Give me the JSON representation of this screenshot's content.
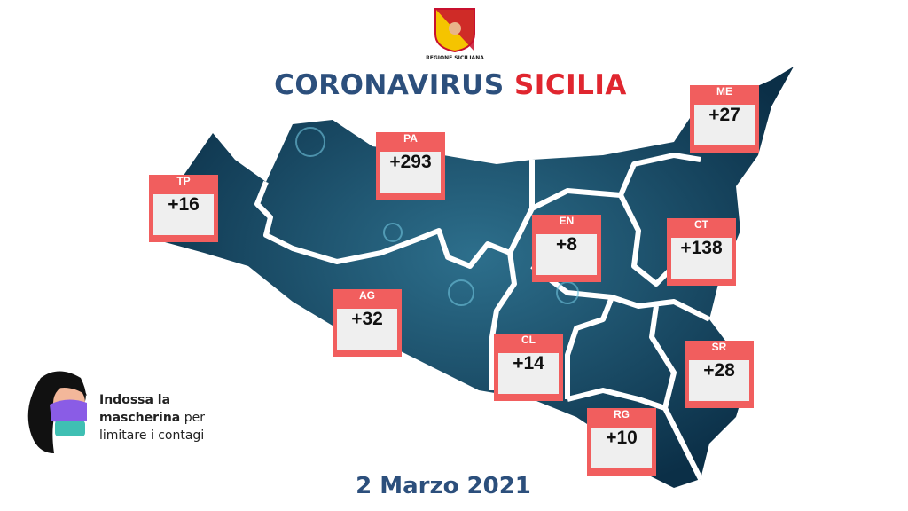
{
  "header": {
    "logo_text": "REGIONE SICILIANA",
    "title_part1": "CORONAVIRUS",
    "title_part2": "SICILIA"
  },
  "colors": {
    "title_blue": "#2c4f7c",
    "title_red": "#e0262f",
    "card_red": "#f15e5e",
    "map": "#0e3a55"
  },
  "provinces": [
    {
      "code": "TP",
      "value": "+16"
    },
    {
      "code": "PA",
      "value": "+293"
    },
    {
      "code": "ME",
      "value": "+27"
    },
    {
      "code": "EN",
      "value": "+8"
    },
    {
      "code": "CT",
      "value": "+138"
    },
    {
      "code": "AG",
      "value": "+32"
    },
    {
      "code": "CL",
      "value": "+14"
    },
    {
      "code": "SR",
      "value": "+28"
    },
    {
      "code": "RG",
      "value": "+10"
    }
  ],
  "advice": {
    "bold1": "Indossa la",
    "bold2": "mascherina",
    "rest1": "per",
    "rest2": "limitare i contagi"
  },
  "date": "2 Marzo 2021"
}
